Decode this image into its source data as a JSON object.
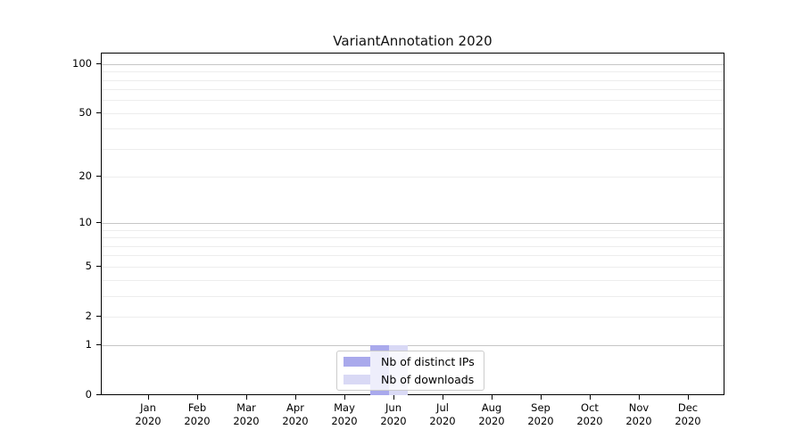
{
  "chart_data": {
    "type": "bar",
    "title": "VariantAnnotation 2020",
    "categories": [
      "Jan",
      "Feb",
      "Mar",
      "Apr",
      "May",
      "Jun",
      "Jul",
      "Aug",
      "Sep",
      "Oct",
      "Nov",
      "Dec"
    ],
    "x_tick_year": "2020",
    "series": [
      {
        "name": "Nb of distinct IPs",
        "color": "#a9a9ec",
        "values": [
          0,
          0,
          0,
          0,
          0,
          1,
          0,
          0,
          0,
          0,
          0,
          0
        ]
      },
      {
        "name": "Nb of downloads",
        "color": "#d9d9f5",
        "values": [
          0,
          0,
          0,
          0,
          0,
          1,
          0,
          0,
          0,
          0,
          0,
          0
        ]
      }
    ],
    "xlabel": "",
    "ylabel": "",
    "y_axis": {
      "scale": "log1p",
      "tick_values": [
        0,
        1,
        2,
        5,
        10,
        20,
        50,
        100
      ],
      "tick_labels": [
        "0",
        "1",
        "2",
        "5",
        "10",
        "20",
        "50",
        "100"
      ],
      "major_gridlines": [
        1,
        10,
        100
      ],
      "minor_gridlines": [
        2,
        3,
        4,
        5,
        6,
        7,
        8,
        9,
        20,
        30,
        40,
        50,
        60,
        70,
        80,
        90
      ],
      "ylim": [
        0,
        116
      ]
    },
    "legend": {
      "position": "lower center"
    },
    "grid": true
  },
  "colors": {
    "background": "#ffffff",
    "axis": "#000000",
    "major_grid": "#c6c6c6",
    "minor_grid": "#ededed",
    "legend_border": "#cccccc"
  }
}
